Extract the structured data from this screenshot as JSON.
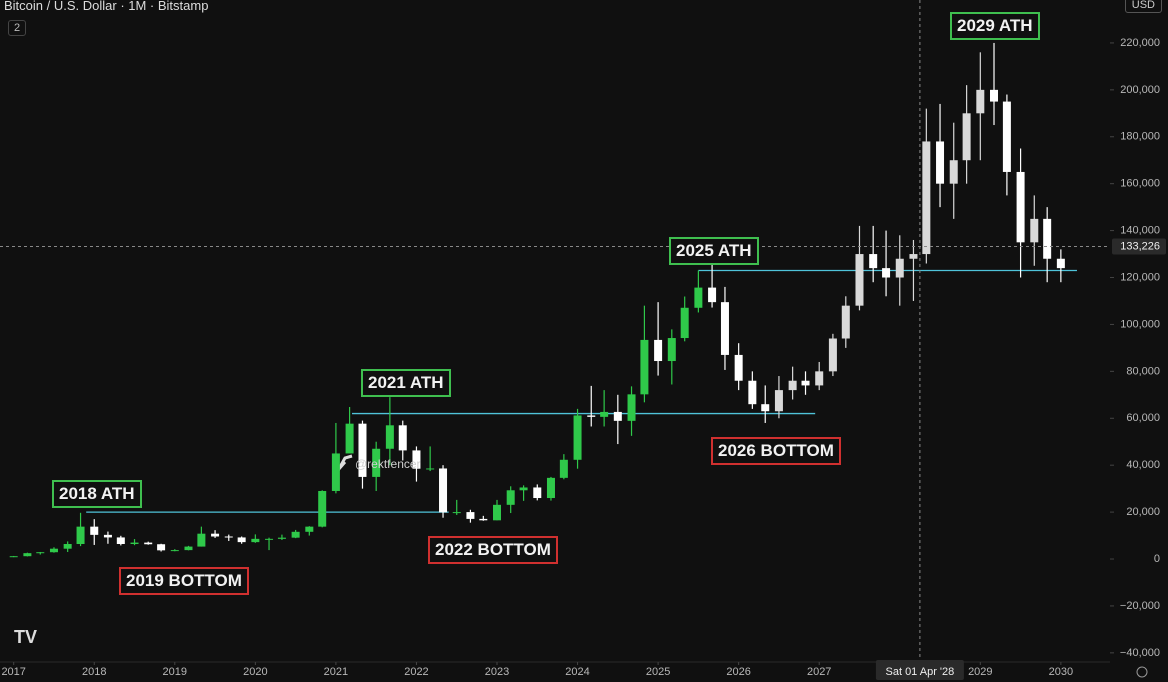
{
  "header": {
    "symbol": "Bitcoin / U.S. Dollar · 1M · Bitstamp",
    "badge": "2",
    "currency": "USD",
    "watermark": "@rektfencer"
  },
  "chart_data": {
    "type": "candlestick",
    "xlim": [
      2016.83,
      2030.61
    ],
    "xticks": [
      2017,
      2018,
      2019,
      2020,
      2021,
      2022,
      2023,
      2024,
      2025,
      2026,
      2027,
      2029,
      2030
    ],
    "ylim": [
      -43900,
      238300
    ],
    "yticks": [
      {
        "value": -40000,
        "label": "−40,000"
      },
      {
        "value": -20000,
        "label": "−20,000"
      },
      0,
      {
        "value": 20000,
        "label": "20,000"
      },
      {
        "value": 40000,
        "label": "40,000"
      },
      {
        "value": 60000,
        "label": "60,000"
      },
      {
        "value": 80000,
        "label": "80,000"
      },
      {
        "value": 100000,
        "label": "100,000"
      },
      {
        "value": 120000,
        "label": "120,000"
      },
      {
        "value": 140000,
        "label": "140,000"
      },
      {
        "value": 160000,
        "label": "160,000"
      },
      {
        "value": 180000,
        "label": "180,000"
      },
      {
        "value": 200000,
        "label": "200,000"
      },
      {
        "value": 220000,
        "label": "220,000"
      }
    ],
    "series": [
      {
        "color_up": "#2fc94a",
        "color_down": "#ffffff",
        "x": [
          2017.0,
          2017.17,
          2017.33,
          2017.5,
          2017.67,
          2017.83,
          2018.0,
          2018.17,
          2018.33,
          2018.5,
          2018.67,
          2018.83,
          2019.0,
          2019.17,
          2019.33,
          2019.5,
          2019.67,
          2019.83,
          2020.0,
          2020.17,
          2020.33,
          2020.5,
          2020.67,
          2020.83,
          2021.0,
          2021.17,
          2021.33,
          2021.5,
          2021.67,
          2021.83,
          2022.0,
          2022.17,
          2022.33,
          2022.5,
          2022.67,
          2022.83,
          2023.0,
          2023.17,
          2023.33,
          2023.5,
          2023.67,
          2023.83,
          2024.0,
          2024.17,
          2024.33,
          2024.5,
          2024.67,
          2024.83,
          2025.0,
          2025.17,
          2025.33,
          2025.5,
          2025.67,
          2025.83
        ],
        "open": [
          1000,
          1200,
          2500,
          2900,
          4400,
          6400,
          13800,
          10300,
          9200,
          6400,
          7000,
          6300,
          3700,
          3800,
          5300,
          10800,
          9600,
          9200,
          7200,
          8600,
          8600,
          9100,
          11600,
          13800,
          29000,
          45000,
          57700,
          35000,
          47000,
          57000,
          46300,
          38500,
          38600,
          19900,
          20000,
          17100,
          16500,
          23100,
          29300,
          30500,
          26000,
          34600,
          42300,
          61200,
          60600,
          62700,
          58900,
          70200,
          93400,
          84400,
          94200,
          107100,
          115700,
          109500
        ],
        "high": [
          1300,
          2700,
          3000,
          5000,
          7500,
          19700,
          17000,
          11700,
          9900,
          8500,
          7400,
          6500,
          4200,
          5600,
          13800,
          12300,
          10400,
          9600,
          10500,
          9100,
          10400,
          12400,
          14000,
          29300,
          58000,
          64800,
          59000,
          50000,
          69000,
          59000,
          48000,
          48000,
          40000,
          25200,
          21000,
          18400,
          25200,
          31000,
          31400,
          31800,
          35000,
          44700,
          64000,
          73800,
          72000,
          70000,
          73600,
          108000,
          109500,
          97900,
          111900,
          123000,
          126000,
          116000
        ],
        "low": [
          800,
          1100,
          1900,
          2700,
          3000,
          5500,
          6000,
          6500,
          5800,
          5900,
          6100,
          3200,
          3300,
          3700,
          5300,
          9000,
          7700,
          6500,
          6900,
          3800,
          8100,
          8900,
          10000,
          13500,
          28000,
          47000,
          30000,
          29000,
          40000,
          42000,
          33000,
          37500,
          17600,
          18800,
          15500,
          16300,
          16500,
          19600,
          24800,
          25000,
          24900,
          34000,
          38500,
          56500,
          56500,
          49000,
          52500,
          66800,
          78200,
          74400,
          92800,
          105100,
          107200,
          80600
        ],
        "close": [
          1200,
          2500,
          2900,
          4400,
          6400,
          13800,
          10300,
          9200,
          6400,
          7000,
          6300,
          3700,
          3800,
          5300,
          10800,
          9600,
          9200,
          7200,
          8600,
          8600,
          9100,
          11600,
          13800,
          29000,
          45000,
          57700,
          35000,
          47000,
          57000,
          46300,
          38500,
          38600,
          19900,
          20000,
          17100,
          16500,
          23100,
          29300,
          30500,
          26000,
          34600,
          42300,
          61200,
          60600,
          62700,
          58900,
          70200,
          93400,
          84400,
          94200,
          107100,
          115700,
          109500,
          87000
        ]
      },
      {
        "color_up": "#d9d9d9",
        "color_down": "#ffffff",
        "x": [
          2026.0,
          2026.17,
          2026.33,
          2026.5,
          2026.67,
          2026.83,
          2027.0,
          2027.17,
          2027.33,
          2027.5,
          2027.67,
          2027.83,
          2028.0,
          2028.17,
          2028.33,
          2028.5,
          2028.67,
          2028.83,
          2029.0,
          2029.17,
          2029.33,
          2029.5,
          2029.67,
          2029.83,
          2030.0
        ],
        "open": [
          87000,
          76000,
          66000,
          63000,
          72000,
          76000,
          74000,
          80000,
          94000,
          108000,
          130000,
          124000,
          120000,
          128000,
          130000,
          178000,
          160000,
          170000,
          190000,
          200000,
          195000,
          165000,
          135000,
          145000,
          128000
        ],
        "high": [
          92000,
          80000,
          74000,
          78000,
          82000,
          80000,
          84000,
          96000,
          112000,
          142000,
          142000,
          140000,
          138000,
          136000,
          192000,
          194000,
          186000,
          202000,
          216000,
          220000,
          198000,
          175000,
          155000,
          150000,
          132000
        ],
        "low": [
          72000,
          64000,
          58000,
          60000,
          68000,
          70000,
          72000,
          78000,
          90000,
          106000,
          118000,
          112000,
          108000,
          110000,
          126000,
          150000,
          145000,
          160000,
          170000,
          185000,
          155000,
          120000,
          125000,
          118000,
          118000
        ],
        "close": [
          76000,
          66000,
          63000,
          72000,
          76000,
          74000,
          80000,
          94000,
          108000,
          130000,
          124000,
          120000,
          128000,
          130000,
          178000,
          160000,
          170000,
          190000,
          200000,
          195000,
          165000,
          135000,
          145000,
          128000,
          124000
        ]
      }
    ],
    "levels": [
      {
        "value": 20000,
        "from": 2017.9,
        "to": 2022.4,
        "color": "#4fc3d9"
      },
      {
        "value": 62000,
        "from": 2021.2,
        "to": 2026.95,
        "color": "#4fc3d9"
      },
      {
        "value": 123000,
        "from": 2025.5,
        "to": 2030.2,
        "color": "#4fc3d9"
      }
    ],
    "crosshair": {
      "price": {
        "value": 133226,
        "label": "133,226"
      },
      "date": {
        "value": 2028.25,
        "label": "Sat 01 Apr '28"
      }
    },
    "annotations": [
      "2018 ATH",
      "2019 BOTTOM",
      "2021 ATH",
      "2022 BOTTOM",
      "2025 ATH",
      "2026 BOTTOM",
      "2029 ATH"
    ]
  }
}
